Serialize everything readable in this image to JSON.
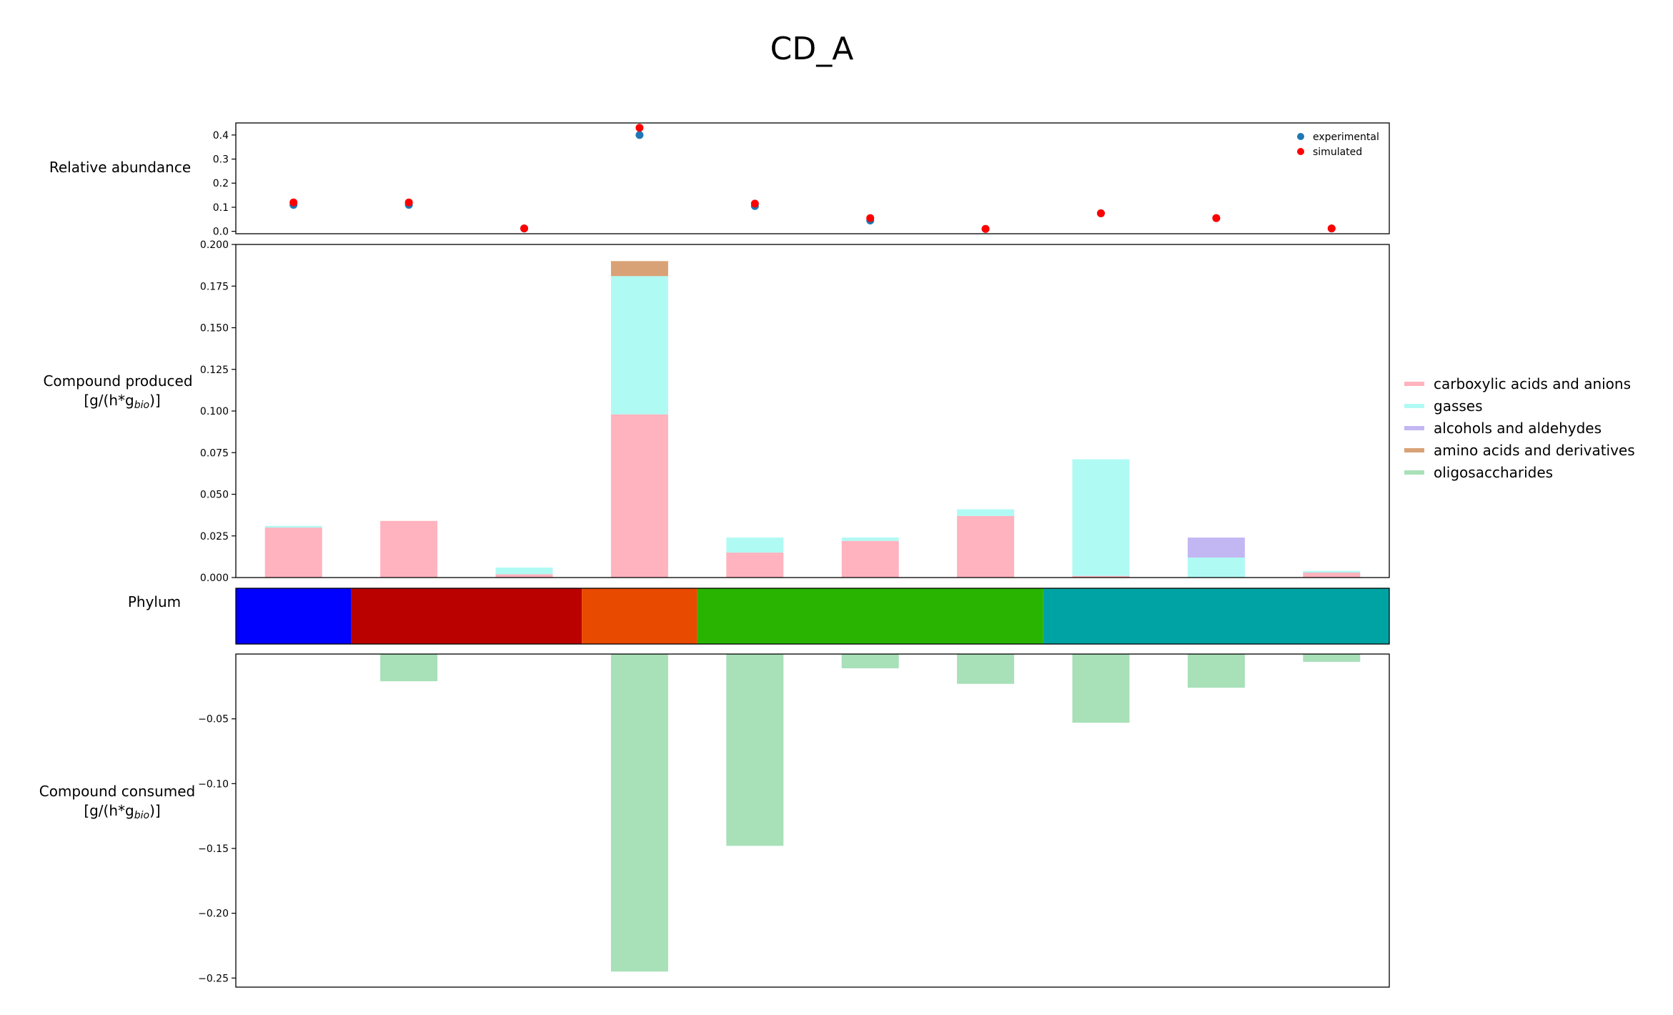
{
  "title": "CD_A",
  "colors": {
    "experimental": "#1f77b4",
    "simulated": "#ff0000",
    "carboxylic": "#ffb3be",
    "gasses": "#b0faf4",
    "alcohols": "#c3b7f3",
    "amino": "#d9a276",
    "oligosaccharides": "#a8e0b8"
  },
  "chart_data": [
    {
      "type": "scatter",
      "panel": "abundance",
      "ylabel": "Relative abundance",
      "ylim": [
        -0.01,
        0.45
      ],
      "yticks": [
        "0.0",
        "0.1",
        "0.2",
        "0.3",
        "0.4"
      ],
      "ytick_values": [
        0,
        0.1,
        0.2,
        0.3,
        0.4
      ],
      "legend_position": "top-right",
      "series": [
        {
          "name": "experimental",
          "values": [
            0.11,
            0.11,
            0.012,
            0.4,
            0.105,
            0.045,
            0.01,
            0.075,
            0.055,
            0.012
          ]
        },
        {
          "name": "simulated",
          "values": [
            0.12,
            0.12,
            0.012,
            0.43,
            0.115,
            0.055,
            0.01,
            0.075,
            0.055,
            0.012
          ]
        }
      ]
    },
    {
      "type": "bar",
      "stacked": true,
      "panel": "produced",
      "ylabel_line1": "Compound produced",
      "ylabel_line2_prefix": "[g/(h*g",
      "ylabel_line2_sub": "bio",
      "ylabel_line2_suffix": ")]",
      "ylim": [
        0,
        0.2
      ],
      "yticks": [
        "0.000",
        "0.025",
        "0.050",
        "0.075",
        "0.100",
        "0.125",
        "0.150",
        "0.175",
        "0.200"
      ],
      "ytick_values": [
        0,
        0.025,
        0.05,
        0.075,
        0.1,
        0.125,
        0.15,
        0.175,
        0.2
      ],
      "legend_position": "right",
      "series": [
        {
          "name": "carboxylic acids and anions",
          "values": [
            0.03,
            0.034,
            0.002,
            0.098,
            0.015,
            0.022,
            0.037,
            0.001,
            0.0,
            0.003
          ]
        },
        {
          "name": "gasses",
          "values": [
            0.001,
            0.0,
            0.004,
            0.083,
            0.009,
            0.002,
            0.004,
            0.07,
            0.012,
            0.001
          ]
        },
        {
          "name": "alcohols and aldehydes",
          "values": [
            0,
            0,
            0,
            0,
            0,
            0,
            0,
            0,
            0.012,
            0
          ]
        },
        {
          "name": "amino acids and derivatives",
          "values": [
            0,
            0,
            0,
            0.009,
            0,
            0,
            0,
            0,
            0,
            0
          ]
        },
        {
          "name": "oligosaccharides",
          "values": [
            0,
            0,
            0,
            0,
            0,
            0,
            0,
            0,
            0,
            0
          ]
        }
      ]
    },
    {
      "type": "heatmap",
      "panel": "phylum",
      "ylabel": "Phylum",
      "segments": [
        {
          "start": 0,
          "end": 1,
          "color": "#0000ff"
        },
        {
          "start": 1,
          "end": 3,
          "color": "#bb0000"
        },
        {
          "start": 3,
          "end": 4,
          "color": "#e84a00"
        },
        {
          "start": 4,
          "end": 7,
          "color": "#28b400"
        },
        {
          "start": 7,
          "end": 10,
          "color": "#00a3a3"
        }
      ]
    },
    {
      "type": "bar",
      "panel": "consumed",
      "ylabel_line1": "Compound consumed",
      "ylabel_line2_prefix": "[g/(h*g",
      "ylabel_line2_sub": "bio",
      "ylabel_line2_suffix": ")]",
      "ylim": [
        -0.257,
        0.0
      ],
      "yticks": [
        "−0.05",
        "−0.10",
        "−0.15",
        "−0.20",
        "−0.25"
      ],
      "ytick_values": [
        -0.05,
        -0.1,
        -0.15,
        -0.2,
        -0.25
      ],
      "series": [
        {
          "name": "oligosaccharides",
          "values": [
            0,
            -0.021,
            0,
            -0.245,
            -0.148,
            -0.011,
            -0.023,
            -0.053,
            -0.026,
            -0.006
          ]
        }
      ]
    }
  ]
}
